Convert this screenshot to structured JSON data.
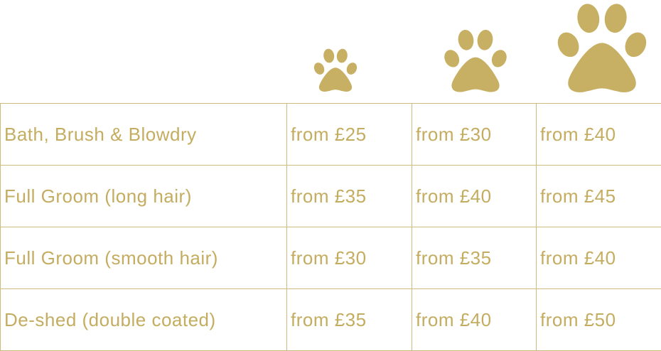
{
  "table": {
    "rows": [
      [
        "Bath, Brush & Blowdry",
        "from £25",
        "from £30",
        "from £40"
      ],
      [
        "Full Groom (long hair)",
        "from £35",
        "from £40",
        "from £45"
      ],
      [
        "Full Groom (smooth hair)",
        "from £30",
        "from £35",
        "from £40"
      ],
      [
        "De-shed (double coated)",
        "from £35",
        "from £40",
        "from £50"
      ]
    ]
  }
}
